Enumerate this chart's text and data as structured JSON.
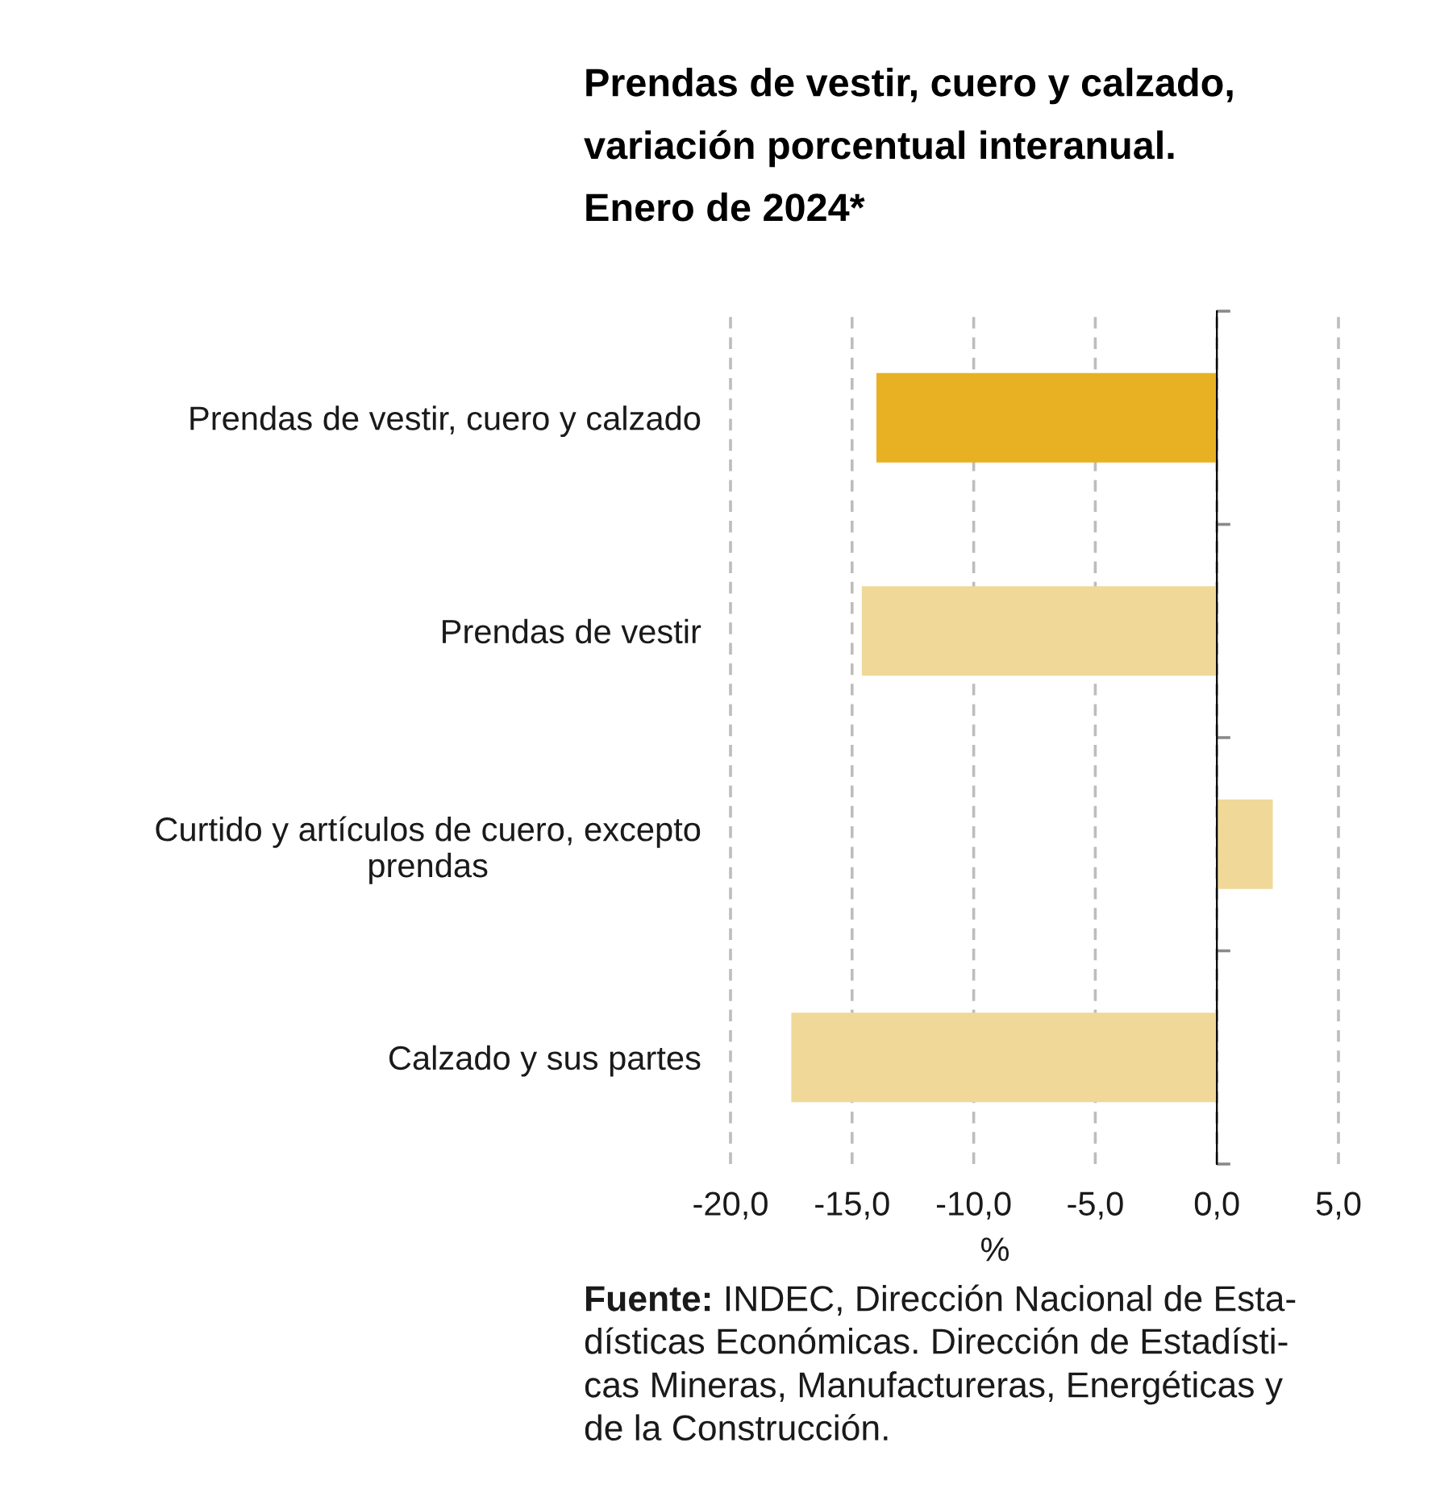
{
  "chart_data": {
    "type": "bar",
    "orientation": "horizontal",
    "title": "Prendas de vestir, cuero y calzado,\nvariación porcentual interanual.\nEnero de 2024*",
    "categories": [
      "Prendas de vestir, cuero y calzado",
      "Prendas de vestir",
      "Curtido y artículos de cuero, excepto\nprendas",
      "Calzado y sus partes"
    ],
    "values": [
      -14.0,
      -14.6,
      2.3,
      -17.5
    ],
    "colors": [
      "#e8b123",
      "#f0d899",
      "#f0d899",
      "#f0d899"
    ],
    "xlabel": "%",
    "xlim": [
      -20,
      5
    ],
    "xticks": [
      {
        "value": -20,
        "label": "-20,0"
      },
      {
        "value": -15,
        "label": "-15,0"
      },
      {
        "value": -10,
        "label": "-10,0"
      },
      {
        "value": -5,
        "label": "-5,0"
      },
      {
        "value": 0,
        "label": "0,0"
      },
      {
        "value": 5,
        "label": "5,0"
      }
    ],
    "grid": "x",
    "annotations": [
      "Fuente: INDEC, Dirección Nacional de Esta-\ndísticas Económicas. Dirección de Estadísti-\ncas Mineras, Manufactureras, Energéticas y\nde la Construcción."
    ]
  }
}
